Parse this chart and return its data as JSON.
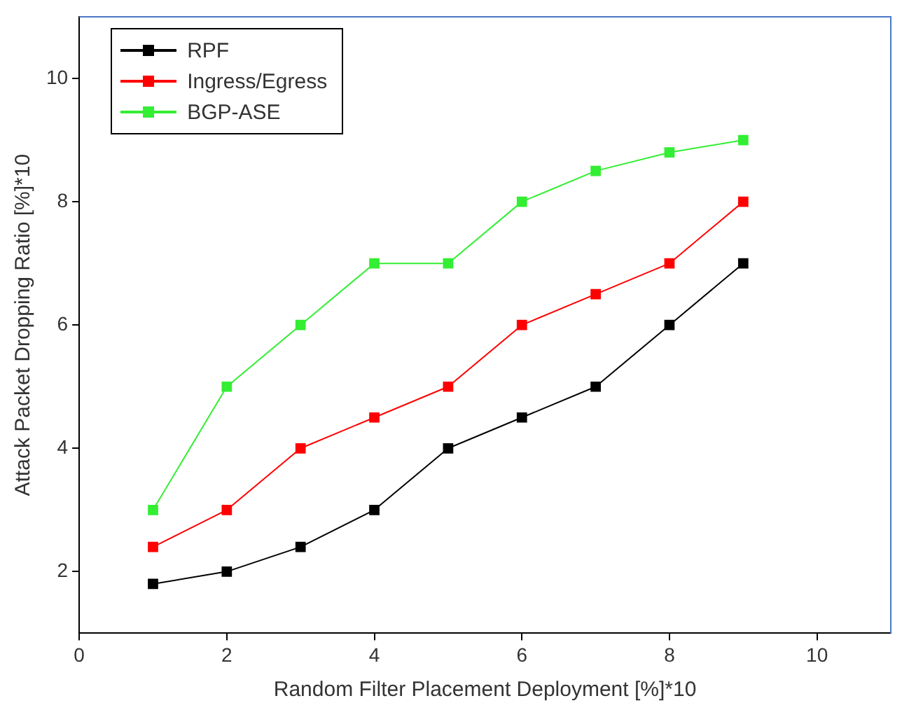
{
  "chart_data": {
    "type": "line",
    "xlabel": "Random Filter Placement Deployment [%]*10",
    "ylabel": "Attack Packet Dropping Ratio [%]*10",
    "x": [
      1,
      2,
      3,
      4,
      5,
      6,
      7,
      8,
      9
    ],
    "series": [
      {
        "name": "RPF",
        "color": "#000000",
        "values": [
          1.8,
          2.0,
          2.4,
          3,
          4,
          4.5,
          5,
          6,
          7
        ]
      },
      {
        "name": "Ingress/Egress",
        "color": "#ff0000",
        "values": [
          2.4,
          3,
          4,
          4.5,
          5,
          6,
          6.5,
          7,
          8
        ]
      },
      {
        "name": "BGP-ASE",
        "color": "#33ee33",
        "values": [
          3,
          5,
          6,
          7,
          7,
          8,
          8.5,
          8.8,
          9
        ]
      }
    ],
    "xlim": [
      0,
      11
    ],
    "xticks": [
      0,
      2,
      4,
      6,
      8,
      10
    ],
    "ylim": [
      1,
      11
    ],
    "yticks": [
      2,
      4,
      6,
      8,
      10
    ],
    "grid": false,
    "legend": "top left",
    "marker": "square",
    "line_style": "solid"
  }
}
